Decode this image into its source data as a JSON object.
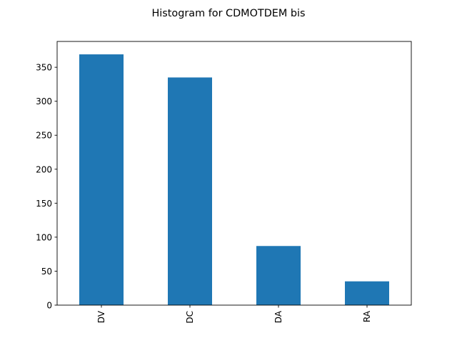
{
  "chart_data": {
    "type": "bar",
    "title": "Histogram for CDMOTDEM bis",
    "categories": [
      "DV",
      "DC",
      "DA",
      "RA"
    ],
    "values": [
      369,
      335,
      87,
      35
    ],
    "xlabel": "",
    "ylabel": "",
    "ylim": [
      0,
      388
    ],
    "yticks": [
      0,
      50,
      100,
      150,
      200,
      250,
      300,
      350
    ],
    "grid": false,
    "legend": "none",
    "bar_color": "#1f77b4",
    "x_tick_rotation": "vertical"
  }
}
